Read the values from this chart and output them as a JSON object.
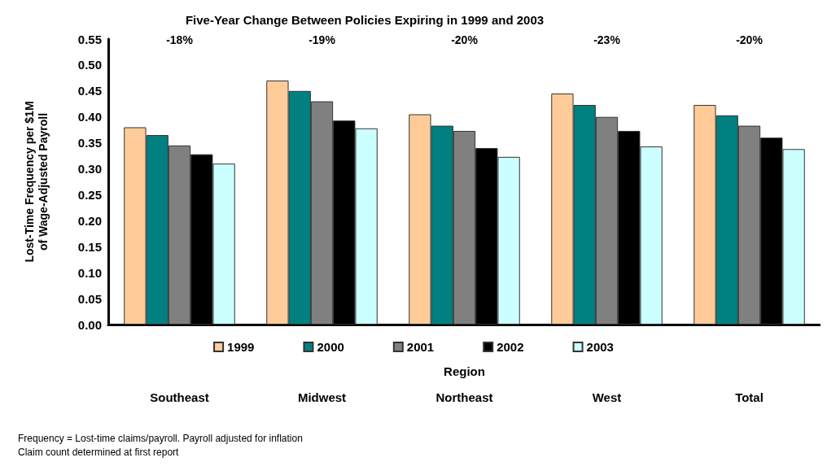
{
  "chart_data": {
    "type": "bar",
    "title": "Five-Year Change Between Policies Expiring in 1999 and 2003",
    "xlabel": "Region",
    "ylabel": "Lost-Time Frequency per $1M\nof Wage-Adjusted Payroll",
    "categories": [
      "Southeast",
      "Midwest",
      "Northeast",
      "West",
      "Total"
    ],
    "series": [
      {
        "name": "1999",
        "color": "#ffcc99",
        "values": [
          0.38,
          0.47,
          0.405,
          0.445,
          0.423
        ]
      },
      {
        "name": "2000",
        "color": "#008080",
        "values": [
          0.365,
          0.45,
          0.383,
          0.423,
          0.403
        ]
      },
      {
        "name": "2001",
        "color": "#808080",
        "values": [
          0.345,
          0.43,
          0.373,
          0.4,
          0.383
        ]
      },
      {
        "name": "2002",
        "color": "#000000",
        "values": [
          0.328,
          0.393,
          0.34,
          0.373,
          0.36
        ]
      },
      {
        "name": "2003",
        "color": "#ccffff",
        "values": [
          0.31,
          0.378,
          0.323,
          0.343,
          0.338
        ]
      }
    ],
    "ylim": [
      0,
      0.55
    ],
    "yticks": [
      {
        "value": 0,
        "label": "0.00"
      },
      0.05,
      {
        "value": 0.1,
        "label": "0.10"
      },
      0.15,
      {
        "value": 0.2,
        "label": "0.20"
      },
      0.25,
      {
        "value": 0.3,
        "label": "0.30"
      },
      0.35,
      {
        "value": 0.4,
        "label": "0.40"
      },
      0.45,
      {
        "value": 0.5,
        "label": "0.50"
      },
      0.55
    ],
    "grid": false,
    "legend": "bottom",
    "annotations": [
      "-18%",
      "-19%",
      "-20%",
      "-23%",
      "-20%",
      "Frequency = Lost-time claims/payroll. Payroll adjusted for inflation",
      "Claim count determined at first report"
    ]
  }
}
